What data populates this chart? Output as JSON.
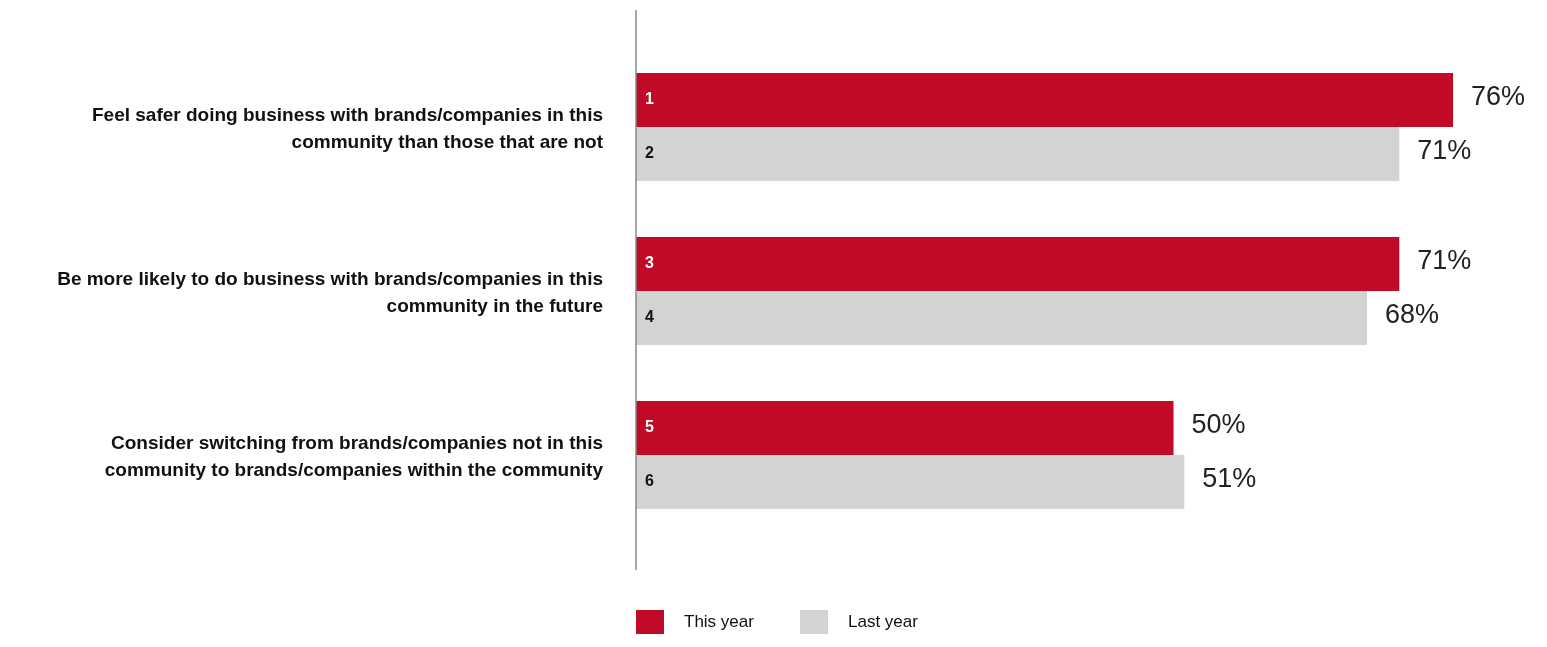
{
  "chart_data": {
    "type": "bar",
    "orientation": "horizontal",
    "categories": [
      "Feel safer doing business with brands/companies in this community than those that are not",
      "Be more likely to do business with brands/companies in this community in the future",
      "Consider switching from brands/companies not in this community to brands/companies within the community"
    ],
    "series": [
      {
        "name": "This year",
        "color": "#c00a27",
        "values": [
          76,
          71,
          50
        ],
        "value_labels": [
          "76%",
          "71%",
          "50%"
        ]
      },
      {
        "name": "Last year",
        "color": "#d3d3d3",
        "values": [
          71,
          68,
          51
        ],
        "value_labels": [
          "71%",
          "68%",
          "51%"
        ]
      }
    ],
    "annotations": [
      {
        "text": "1",
        "y": "Feel safer doing business with brands/companies in this community than those that are not"
      },
      {
        "text": "2",
        "y": "Feel safer doing business with brands/companies in this community than those that are not"
      },
      {
        "text": "3",
        "y": "Be more likely to do business with brands/companies in this community in the future"
      },
      {
        "text": "4",
        "y": "Be more likely to do business with brands/companies in this community in the future"
      },
      {
        "text": "5",
        "y": "Consider switching from brands/companies not in this community to brands/companies within the community"
      },
      {
        "text": "6",
        "y": "Consider switching from brands/companies not in this community to brands/companies within the community"
      }
    ],
    "legend": "bottom"
  }
}
